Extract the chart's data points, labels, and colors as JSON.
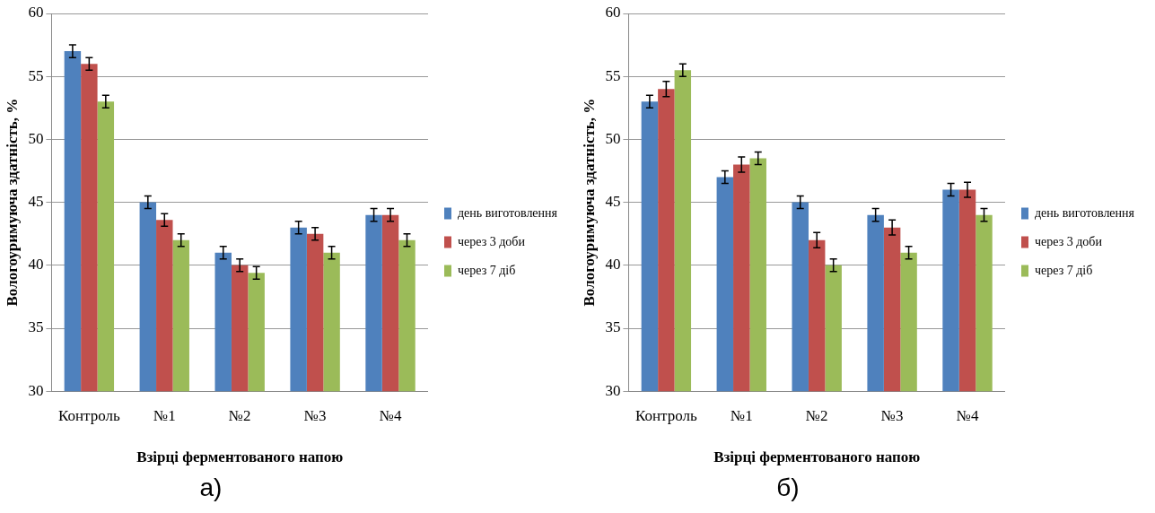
{
  "chart_data": [
    {
      "type": "bar",
      "xlabel": "Взірці ферментованого напою",
      "ylabel": "Вологоуримуюча здатність, %",
      "categories": [
        "Контроль",
        "№1",
        "№2",
        "№3",
        "№4"
      ],
      "series": [
        {
          "name": "день виготовлення",
          "color": "#4f81bd",
          "values": [
            57,
            45,
            41,
            43,
            44
          ],
          "errors": [
            0.5,
            0.5,
            0.5,
            0.5,
            0.5
          ]
        },
        {
          "name": "через 3 доби",
          "color": "#c0504d",
          "values": [
            56,
            43.6,
            40,
            42.5,
            44
          ],
          "errors": [
            0.5,
            0.5,
            0.5,
            0.5,
            0.5
          ]
        },
        {
          "name": "через 7 діб",
          "color": "#9bbb59",
          "values": [
            53,
            42,
            39.4,
            41,
            42
          ],
          "errors": [
            0.5,
            0.5,
            0.5,
            0.5,
            0.5
          ]
        }
      ],
      "ylim": [
        30,
        60
      ],
      "yticks": [
        30,
        35,
        40,
        45,
        50,
        55,
        60
      ],
      "grid": "y",
      "legend": "right",
      "annotations": [
        "а)"
      ]
    },
    {
      "type": "bar",
      "xlabel": "Взірці ферментованого напою",
      "ylabel": "Вологоуримуюча здатність, %",
      "categories": [
        "Контроль",
        "№1",
        "№2",
        "№3",
        "№4"
      ],
      "series": [
        {
          "name": "день виготовлення",
          "color": "#4f81bd",
          "values": [
            53,
            47,
            45,
            44,
            46
          ],
          "errors": [
            0.5,
            0.5,
            0.5,
            0.5,
            0.5
          ]
        },
        {
          "name": "через 3 доби",
          "color": "#c0504d",
          "values": [
            54,
            48,
            42,
            43,
            46
          ],
          "errors": [
            0.6,
            0.6,
            0.6,
            0.6,
            0.6
          ]
        },
        {
          "name": "через 7 діб",
          "color": "#9bbb59",
          "values": [
            55.5,
            48.5,
            40,
            41,
            44
          ],
          "errors": [
            0.5,
            0.5,
            0.5,
            0.5,
            0.5
          ]
        }
      ],
      "ylim": [
        30,
        60
      ],
      "yticks": [
        30,
        35,
        40,
        45,
        50,
        55,
        60
      ],
      "grid": "y",
      "legend": "right",
      "annotations": [
        "б)"
      ]
    }
  ]
}
